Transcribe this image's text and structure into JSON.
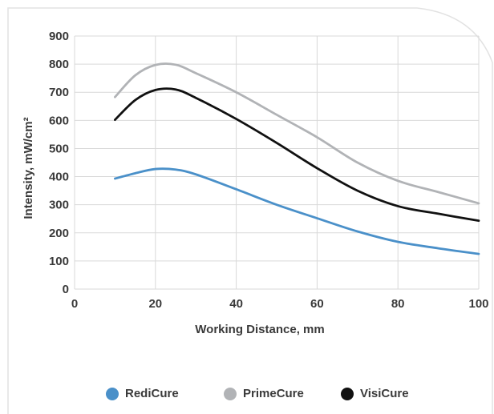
{
  "chart_data": {
    "type": "line",
    "xlabel": "Working Distance, mm",
    "ylabel": "Intensity, mW/cm²",
    "xlim": [
      0,
      100
    ],
    "ylim": [
      0,
      900
    ],
    "xticks": [
      0,
      20,
      40,
      60,
      80,
      100
    ],
    "yticks": [
      0,
      100,
      200,
      300,
      400,
      500,
      600,
      700,
      800,
      900
    ],
    "grid": true,
    "legend_position": "bottom",
    "series": [
      {
        "name": "RediCure",
        "color": "#4a90c9",
        "x": [
          10,
          15,
          20,
          25,
          30,
          40,
          50,
          60,
          70,
          80,
          90,
          100
        ],
        "y": [
          393,
          412,
          427,
          425,
          408,
          355,
          300,
          252,
          205,
          168,
          145,
          125
        ]
      },
      {
        "name": "PrimeCure",
        "color": "#b1b3b6",
        "x": [
          10,
          15,
          20,
          25,
          30,
          40,
          50,
          60,
          70,
          80,
          90,
          100
        ],
        "y": [
          683,
          760,
          797,
          798,
          768,
          700,
          620,
          540,
          450,
          385,
          345,
          305
        ]
      },
      {
        "name": "VisiCure",
        "color": "#111111",
        "x": [
          10,
          15,
          20,
          25,
          30,
          40,
          50,
          60,
          70,
          80,
          90,
          100
        ],
        "y": [
          602,
          672,
          708,
          710,
          680,
          605,
          520,
          430,
          350,
          295,
          268,
          243
        ]
      }
    ]
  }
}
